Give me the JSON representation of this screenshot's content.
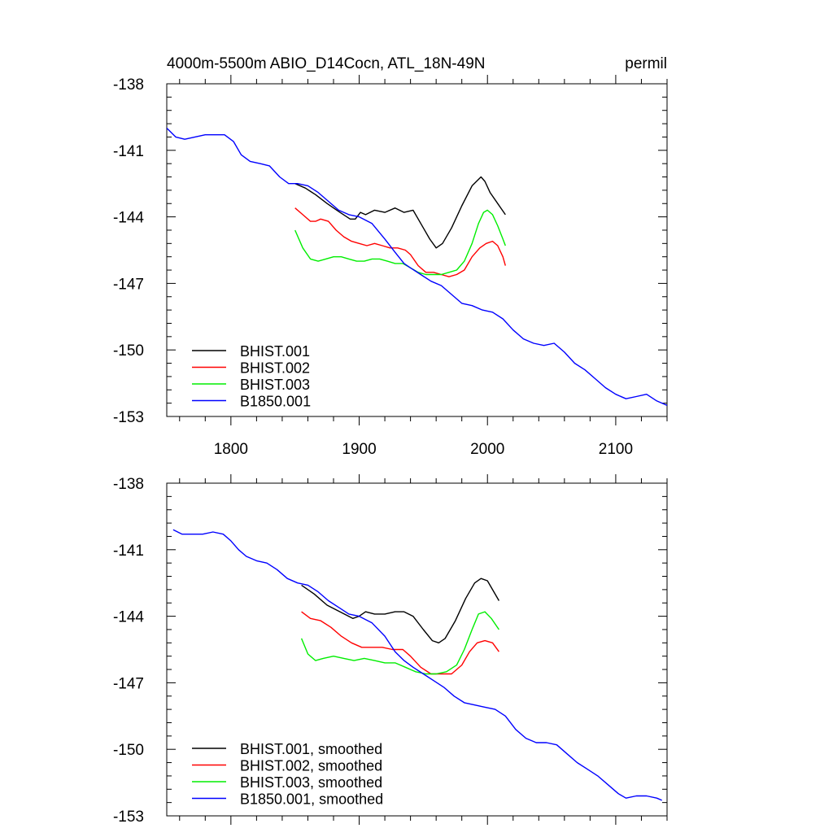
{
  "chart_data": [
    {
      "type": "line",
      "title": "4000m-5500m ABIO_D14Cocn, ATL_18N-49N",
      "units": "permil",
      "xlim": [
        1750,
        2140
      ],
      "ylim": [
        -153,
        -138
      ],
      "xticks": [
        1800,
        1900,
        2000,
        2100
      ],
      "xtick_labels": [
        "1800",
        "1900",
        "2000",
        "2100"
      ],
      "yticks": [
        -153,
        -150,
        -147,
        -144,
        -141,
        -138
      ],
      "ytick_labels": [
        "-153",
        "-150",
        "-147",
        "-144",
        "-141",
        "-138"
      ],
      "legend_position": "bottom-left",
      "series": [
        {
          "name": "BHIST.001",
          "color": "#000000",
          "x": [
            1850,
            1858,
            1866,
            1875,
            1885,
            1893,
            1897,
            1901,
            1905,
            1912,
            1920,
            1928,
            1935,
            1942,
            1950,
            1955,
            1960,
            1965,
            1972,
            1980,
            1988,
            1995,
            1998,
            2002,
            2008,
            2014
          ],
          "y": [
            -142.5,
            -142.7,
            -143.0,
            -143.4,
            -143.8,
            -144.1,
            -144.1,
            -143.8,
            -143.9,
            -143.7,
            -143.8,
            -143.6,
            -143.8,
            -143.7,
            -144.5,
            -145.0,
            -145.4,
            -145.2,
            -144.5,
            -143.5,
            -142.6,
            -142.2,
            -142.4,
            -142.9,
            -143.4,
            -143.9
          ]
        },
        {
          "name": "BHIST.002",
          "color": "#ff0000",
          "x": [
            1850,
            1856,
            1862,
            1866,
            1870,
            1876,
            1882,
            1888,
            1894,
            1900,
            1906,
            1912,
            1918,
            1924,
            1930,
            1936,
            1940,
            1946,
            1952,
            1958,
            1964,
            1970,
            1976,
            1982,
            1988,
            1994,
            1999,
            2004,
            2008,
            2012,
            2014
          ],
          "y": [
            -143.6,
            -143.9,
            -144.2,
            -144.2,
            -144.1,
            -144.2,
            -144.6,
            -144.9,
            -145.1,
            -145.2,
            -145.3,
            -145.2,
            -145.3,
            -145.4,
            -145.4,
            -145.5,
            -145.7,
            -146.2,
            -146.5,
            -146.5,
            -146.6,
            -146.7,
            -146.6,
            -146.4,
            -145.8,
            -145.4,
            -145.2,
            -145.1,
            -145.3,
            -145.8,
            -146.2
          ]
        },
        {
          "name": "BHIST.003",
          "color": "#00ee00",
          "x": [
            1850,
            1856,
            1862,
            1868,
            1874,
            1880,
            1886,
            1892,
            1898,
            1904,
            1910,
            1916,
            1922,
            1928,
            1934,
            1940,
            1946,
            1952,
            1958,
            1964,
            1970,
            1976,
            1982,
            1988,
            1993,
            1997,
            2000,
            2004,
            2008,
            2012,
            2014
          ],
          "y": [
            -144.6,
            -145.4,
            -145.9,
            -146.0,
            -145.9,
            -145.8,
            -145.8,
            -145.9,
            -146.0,
            -146.0,
            -145.9,
            -145.9,
            -146.0,
            -146.1,
            -146.1,
            -146.3,
            -146.5,
            -146.6,
            -146.6,
            -146.6,
            -146.5,
            -146.4,
            -146.0,
            -145.2,
            -144.3,
            -143.8,
            -143.7,
            -143.9,
            -144.4,
            -145.0,
            -145.3
          ]
        },
        {
          "name": "B1850.001",
          "color": "#0000ff",
          "x": [
            1750,
            1757,
            1764,
            1772,
            1780,
            1788,
            1795,
            1802,
            1808,
            1815,
            1823,
            1830,
            1838,
            1845,
            1852,
            1860,
            1868,
            1876,
            1884,
            1892,
            1900,
            1910,
            1920,
            1928,
            1935,
            1940,
            1948,
            1956,
            1964,
            1972,
            1980,
            1988,
            1996,
            2004,
            2012,
            2020,
            2028,
            2036,
            2044,
            2052,
            2060,
            2068,
            2076,
            2084,
            2092,
            2100,
            2108,
            2116,
            2124,
            2132,
            2140
          ],
          "y": [
            -140.0,
            -140.4,
            -140.5,
            -140.4,
            -140.3,
            -140.3,
            -140.3,
            -140.6,
            -141.2,
            -141.5,
            -141.6,
            -141.7,
            -142.2,
            -142.5,
            -142.5,
            -142.6,
            -142.9,
            -143.3,
            -143.7,
            -143.9,
            -144.0,
            -144.3,
            -145.0,
            -145.6,
            -146.1,
            -146.3,
            -146.6,
            -146.9,
            -147.1,
            -147.5,
            -147.9,
            -148.0,
            -148.2,
            -148.3,
            -148.6,
            -149.1,
            -149.5,
            -149.7,
            -149.8,
            -149.7,
            -150.1,
            -150.6,
            -150.9,
            -151.3,
            -151.7,
            -152.0,
            -152.2,
            -152.1,
            -152.0,
            -152.3,
            -152.5
          ]
        }
      ]
    },
    {
      "type": "line",
      "xlim": [
        1750,
        2140
      ],
      "ylim": [
        -153,
        -138
      ],
      "xticks": [
        1800,
        1900,
        2000,
        2100
      ],
      "yticks": [
        -153,
        -150,
        -147,
        -144,
        -141,
        -138
      ],
      "ytick_labels": [
        "-153",
        "-150",
        "-147",
        "-144",
        "-141",
        "-138"
      ],
      "legend_position": "bottom-left",
      "series": [
        {
          "name": "BHIST.001, smoothed",
          "color": "#000000",
          "x": [
            1855,
            1865,
            1875,
            1885,
            1895,
            1900,
            1905,
            1912,
            1920,
            1928,
            1935,
            1942,
            1950,
            1957,
            1962,
            1967,
            1975,
            1983,
            1990,
            1995,
            2000,
            2004,
            2009
          ],
          "y": [
            -142.6,
            -143.0,
            -143.5,
            -143.8,
            -144.1,
            -144.0,
            -143.8,
            -143.9,
            -143.9,
            -143.8,
            -143.8,
            -144.0,
            -144.6,
            -145.1,
            -145.2,
            -145.0,
            -144.2,
            -143.2,
            -142.5,
            -142.3,
            -142.4,
            -142.8,
            -143.3
          ]
        },
        {
          "name": "BHIST.002, smoothed",
          "color": "#ff0000",
          "x": [
            1855,
            1862,
            1870,
            1878,
            1886,
            1894,
            1902,
            1910,
            1918,
            1926,
            1934,
            1940,
            1948,
            1956,
            1964,
            1972,
            1980,
            1986,
            1992,
            1998,
            2004,
            2009
          ],
          "y": [
            -143.8,
            -144.1,
            -144.2,
            -144.5,
            -144.9,
            -145.2,
            -145.4,
            -145.4,
            -145.4,
            -145.5,
            -145.5,
            -145.8,
            -146.3,
            -146.6,
            -146.6,
            -146.6,
            -146.2,
            -145.6,
            -145.2,
            -145.1,
            -145.2,
            -145.6
          ]
        },
        {
          "name": "BHIST.003, smoothed",
          "color": "#00ee00",
          "x": [
            1855,
            1860,
            1866,
            1872,
            1880,
            1888,
            1896,
            1904,
            1912,
            1920,
            1928,
            1936,
            1944,
            1952,
            1960,
            1968,
            1976,
            1982,
            1988,
            1993,
            1998,
            2003,
            2009
          ],
          "y": [
            -145.0,
            -145.7,
            -146.0,
            -145.9,
            -145.8,
            -145.9,
            -146.0,
            -145.9,
            -146.0,
            -146.1,
            -146.1,
            -146.3,
            -146.5,
            -146.6,
            -146.6,
            -146.5,
            -146.2,
            -145.5,
            -144.6,
            -143.9,
            -143.8,
            -144.1,
            -144.6
          ]
        },
        {
          "name": "B1850.001, smoothed",
          "color": "#0000ff",
          "x": [
            1755,
            1762,
            1770,
            1778,
            1786,
            1794,
            1800,
            1806,
            1812,
            1820,
            1828,
            1836,
            1844,
            1852,
            1860,
            1868,
            1876,
            1884,
            1892,
            1900,
            1910,
            1920,
            1928,
            1935,
            1942,
            1950,
            1958,
            1966,
            1974,
            1982,
            1990,
            1998,
            2006,
            2014,
            2022,
            2030,
            2038,
            2046,
            2054,
            2062,
            2070,
            2078,
            2086,
            2094,
            2102,
            2108,
            2116,
            2124,
            2132,
            2136
          ],
          "y": [
            -140.1,
            -140.3,
            -140.3,
            -140.3,
            -140.2,
            -140.3,
            -140.6,
            -141.0,
            -141.3,
            -141.5,
            -141.6,
            -141.9,
            -142.3,
            -142.5,
            -142.6,
            -142.9,
            -143.3,
            -143.6,
            -143.9,
            -144.0,
            -144.3,
            -144.9,
            -145.6,
            -146.0,
            -146.3,
            -146.6,
            -146.9,
            -147.2,
            -147.6,
            -147.9,
            -148.0,
            -148.1,
            -148.2,
            -148.5,
            -149.1,
            -149.5,
            -149.7,
            -149.7,
            -149.8,
            -150.2,
            -150.6,
            -150.9,
            -151.2,
            -151.6,
            -152.0,
            -152.2,
            -152.1,
            -152.1,
            -152.2,
            -152.3
          ]
        }
      ]
    }
  ]
}
